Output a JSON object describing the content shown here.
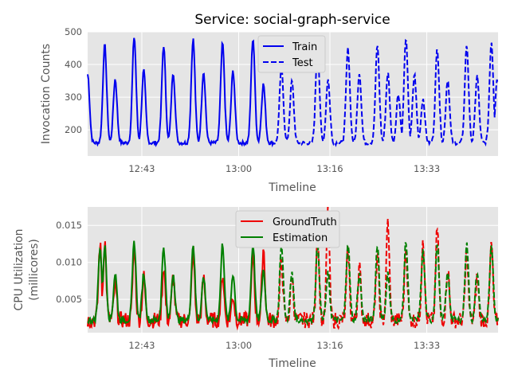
{
  "chart_data": [
    {
      "type": "line",
      "title": "Service: social-graph-service",
      "xlabel": "Timeline",
      "ylabel": "Invocation Counts",
      "xlim": [
        0,
        4320
      ],
      "ylim": [
        120,
        500
      ],
      "yticks": [
        200,
        300,
        400,
        500
      ],
      "xticks": [
        {
          "x": 570,
          "label": "12:43"
        },
        {
          "x": 1590,
          "label": "13:00"
        },
        {
          "x": 2550,
          "label": "13:16"
        },
        {
          "x": 3570,
          "label": "13:33"
        }
      ],
      "legend": {
        "position": "top-center",
        "entries": [
          {
            "label": "Train",
            "style": "solid"
          },
          {
            "label": "Test",
            "style": "dashed"
          }
        ]
      },
      "colors": {
        "train": "#0000ee",
        "test": "#0000ee"
      },
      "series": [
        {
          "name": "Train",
          "style": "solid",
          "x_range": [
            0,
            1980
          ],
          "peaks": [
            {
              "t": 0,
              "v": 370
            },
            {
              "t": 180,
              "v": 460
            },
            {
              "t": 290,
              "v": 355
            },
            {
              "t": 490,
              "v": 485
            },
            {
              "t": 590,
              "v": 382
            },
            {
              "t": 800,
              "v": 458
            },
            {
              "t": 900,
              "v": 375
            },
            {
              "t": 1110,
              "v": 478
            },
            {
              "t": 1220,
              "v": 378
            },
            {
              "t": 1420,
              "v": 465
            },
            {
              "t": 1530,
              "v": 380
            },
            {
              "t": 1740,
              "v": 480
            },
            {
              "t": 1850,
              "v": 340
            }
          ]
        },
        {
          "name": "Test",
          "style": "dashed",
          "x_range": [
            1980,
            4320
          ],
          "peaks": [
            {
              "t": 2040,
              "v": 395
            },
            {
              "t": 2150,
              "v": 350
            },
            {
              "t": 2420,
              "v": 455
            },
            {
              "t": 2530,
              "v": 355
            },
            {
              "t": 2740,
              "v": 448
            },
            {
              "t": 2860,
              "v": 375
            },
            {
              "t": 3050,
              "v": 460
            },
            {
              "t": 3160,
              "v": 375
            },
            {
              "t": 3270,
              "v": 310
            },
            {
              "t": 3350,
              "v": 480
            },
            {
              "t": 3440,
              "v": 370
            },
            {
              "t": 3530,
              "v": 295
            },
            {
              "t": 3680,
              "v": 450
            },
            {
              "t": 3790,
              "v": 355
            },
            {
              "t": 3990,
              "v": 460
            },
            {
              "t": 4100,
              "v": 365
            },
            {
              "t": 4250,
              "v": 470
            },
            {
              "t": 4310,
              "v": 355
            }
          ]
        }
      ]
    },
    {
      "type": "line",
      "title": "",
      "xlabel": "Timeline",
      "ylabel_lines": [
        "CPU Utilization",
        "(millicores)"
      ],
      "xlim": [
        0,
        4320
      ],
      "ylim": [
        0.0005,
        0.0175
      ],
      "yticks": [
        0.005,
        0.01,
        0.015
      ],
      "ytick_labels": [
        "0.005",
        "0.010",
        "0.015"
      ],
      "xticks": [
        {
          "x": 570,
          "label": "12:43"
        },
        {
          "x": 1590,
          "label": "13:00"
        },
        {
          "x": 2550,
          "label": "13:16"
        },
        {
          "x": 3570,
          "label": "13:33"
        }
      ],
      "split_x": 1980,
      "legend": {
        "position": "top-center",
        "entries": [
          {
            "label": "GroundTruth",
            "color": "#ee0000"
          },
          {
            "label": "Estimation",
            "color": "#008000"
          }
        ]
      },
      "colors": {
        "groundtruth": "#ee0000",
        "estimation": "#008000"
      },
      "series": [
        {
          "name": "GroundTruth",
          "peaks": [
            {
              "t": 130,
              "v": 0.0125
            },
            {
              "t": 180,
              "v": 0.0129
            },
            {
              "t": 290,
              "v": 0.007
            },
            {
              "t": 490,
              "v": 0.0122
            },
            {
              "t": 590,
              "v": 0.008
            },
            {
              "t": 800,
              "v": 0.0095
            },
            {
              "t": 900,
              "v": 0.0081
            },
            {
              "t": 1110,
              "v": 0.0115
            },
            {
              "t": 1220,
              "v": 0.0078
            },
            {
              "t": 1420,
              "v": 0.0085
            },
            {
              "t": 1530,
              "v": 0.0055
            },
            {
              "t": 1740,
              "v": 0.011
            },
            {
              "t": 1850,
              "v": 0.012
            },
            {
              "t": 2040,
              "v": 0.0105
            },
            {
              "t": 2150,
              "v": 0.008
            },
            {
              "t": 2420,
              "v": 0.0145
            },
            {
              "t": 2530,
              "v": 0.017
            },
            {
              "t": 2740,
              "v": 0.0115
            },
            {
              "t": 2860,
              "v": 0.0095
            },
            {
              "t": 3050,
              "v": 0.011
            },
            {
              "t": 3160,
              "v": 0.0156
            },
            {
              "t": 3350,
              "v": 0.012
            },
            {
              "t": 3530,
              "v": 0.0135
            },
            {
              "t": 3680,
              "v": 0.0148
            },
            {
              "t": 3790,
              "v": 0.0095
            },
            {
              "t": 3990,
              "v": 0.0115
            },
            {
              "t": 4100,
              "v": 0.008
            },
            {
              "t": 4250,
              "v": 0.0125
            }
          ]
        },
        {
          "name": "Estimation",
          "peaks": [
            {
              "t": 130,
              "v": 0.012
            },
            {
              "t": 180,
              "v": 0.0122
            },
            {
              "t": 290,
              "v": 0.0085
            },
            {
              "t": 490,
              "v": 0.0128
            },
            {
              "t": 590,
              "v": 0.0085
            },
            {
              "t": 800,
              "v": 0.0122
            },
            {
              "t": 900,
              "v": 0.0085
            },
            {
              "t": 1110,
              "v": 0.0125
            },
            {
              "t": 1220,
              "v": 0.008
            },
            {
              "t": 1420,
              "v": 0.0125
            },
            {
              "t": 1530,
              "v": 0.0085
            },
            {
              "t": 1740,
              "v": 0.0125
            },
            {
              "t": 1850,
              "v": 0.009
            },
            {
              "t": 2040,
              "v": 0.0125
            },
            {
              "t": 2150,
              "v": 0.0085
            },
            {
              "t": 2420,
              "v": 0.0125
            },
            {
              "t": 2530,
              "v": 0.0085
            },
            {
              "t": 2740,
              "v": 0.0128
            },
            {
              "t": 2860,
              "v": 0.0085
            },
            {
              "t": 3050,
              "v": 0.0125
            },
            {
              "t": 3160,
              "v": 0.0085
            },
            {
              "t": 3350,
              "v": 0.0128
            },
            {
              "t": 3530,
              "v": 0.0115
            },
            {
              "t": 3680,
              "v": 0.0125
            },
            {
              "t": 3790,
              "v": 0.0085
            },
            {
              "t": 3990,
              "v": 0.0125
            },
            {
              "t": 4100,
              "v": 0.0085
            },
            {
              "t": 4250,
              "v": 0.012
            }
          ]
        }
      ]
    }
  ]
}
